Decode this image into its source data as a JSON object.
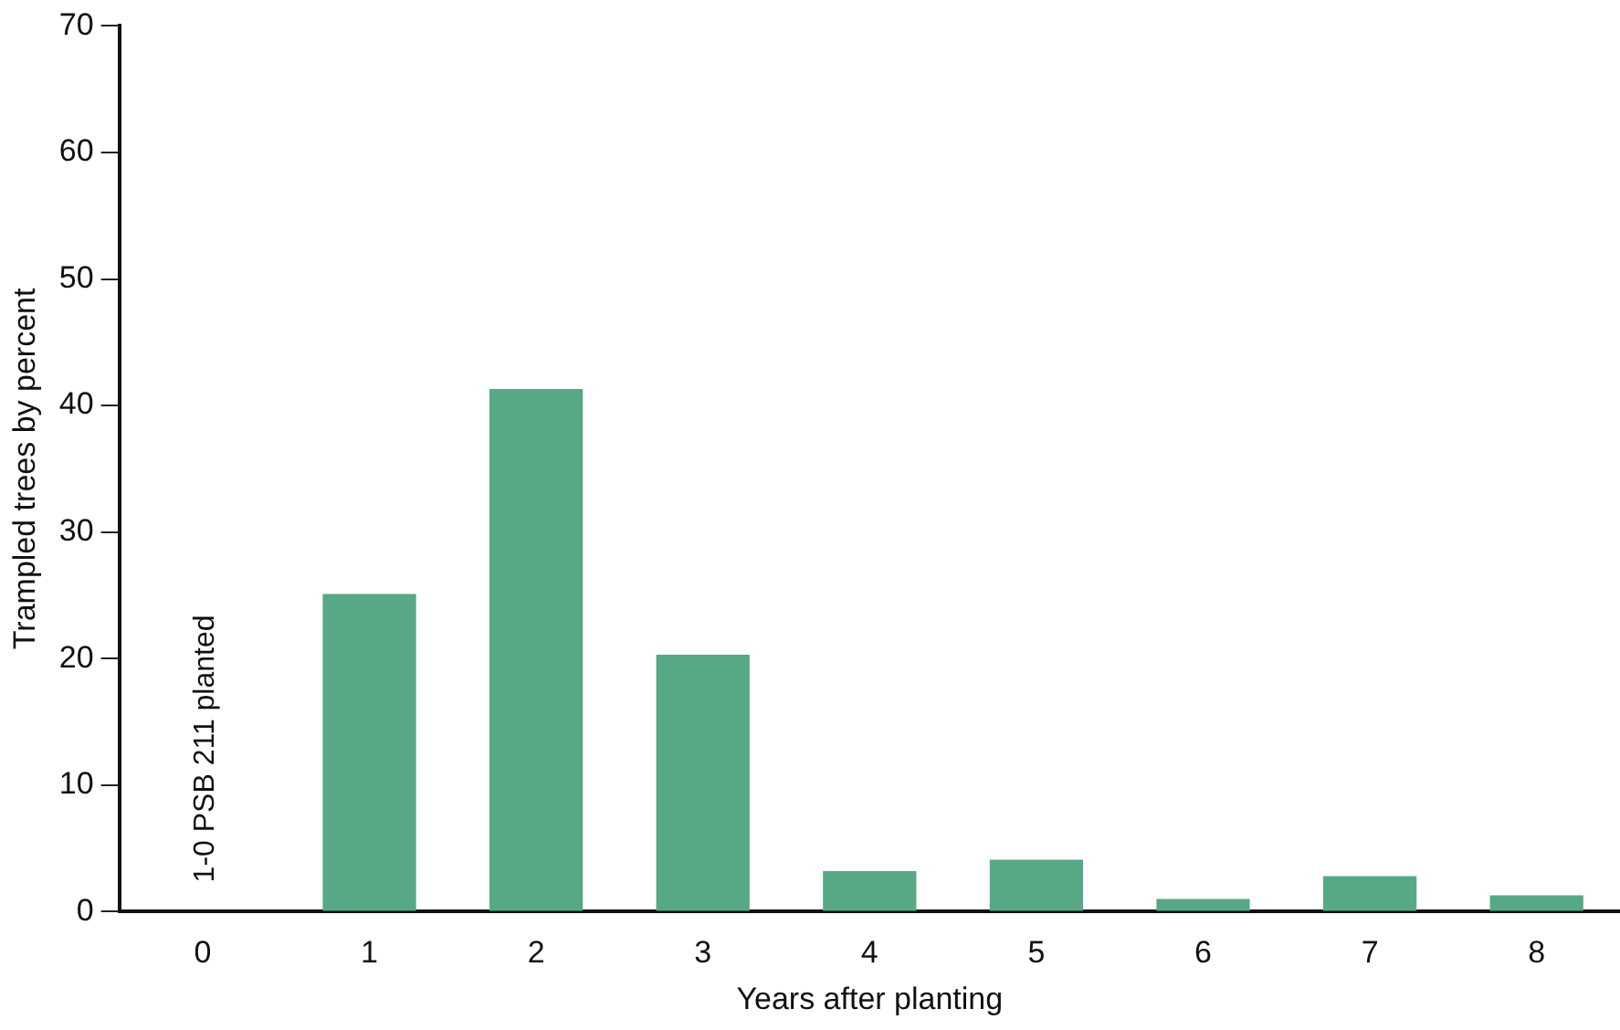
{
  "chart_data": {
    "type": "bar",
    "xlabel": "Years after planting",
    "ylabel": "Trampled trees by percent",
    "categories": [
      "0",
      "1",
      "2",
      "3",
      "4",
      "5",
      "6",
      "7",
      "8"
    ],
    "values": [
      0,
      25.1,
      41.3,
      20.3,
      3.2,
      4.1,
      1.0,
      2.8,
      1.3
    ],
    "color": "#56a984",
    "ylim": [
      0,
      70
    ],
    "yticks": [
      0,
      10,
      20,
      30,
      40,
      50,
      60,
      70
    ],
    "grid": false,
    "legend": false,
    "annotations": [
      {
        "text": "1-0 PSB 211 planted",
        "x": "0",
        "y": 0
      }
    ]
  }
}
